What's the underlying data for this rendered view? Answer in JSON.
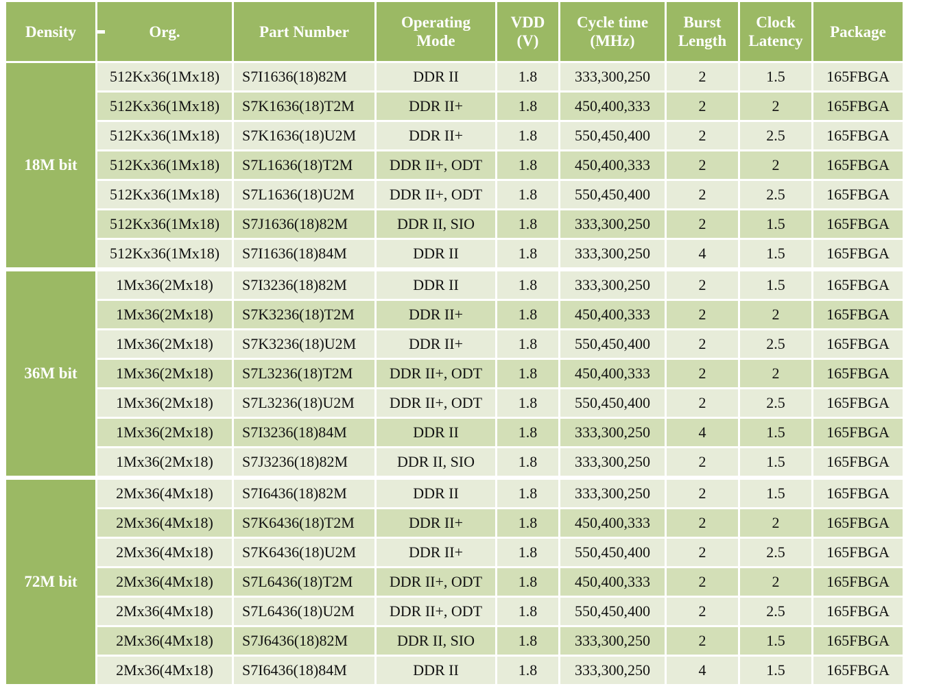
{
  "headers": [
    "Density",
    "Org.",
    "Part Number",
    "Operating\nMode",
    "VDD\n(V)",
    "Cycle time\n(MHz)",
    "Burst\nLength",
    "Clock\nLatency",
    "Package"
  ],
  "groups": [
    {
      "density": "18M bit",
      "rows": [
        [
          "512Kx36(1Mx18)",
          "S7I1636(18)82M",
          "DDR II",
          "1.8",
          "333,300,250",
          "2",
          "1.5",
          "165FBGA"
        ],
        [
          "512Kx36(1Mx18)",
          "S7K1636(18)T2M",
          "DDR II+",
          "1.8",
          "450,400,333",
          "2",
          "2",
          "165FBGA"
        ],
        [
          "512Kx36(1Mx18)",
          "S7K1636(18)U2M",
          "DDR II+",
          "1.8",
          "550,450,400",
          "2",
          "2.5",
          "165FBGA"
        ],
        [
          "512Kx36(1Mx18)",
          "S7L1636(18)T2M",
          "DDR II+, ODT",
          "1.8",
          "450,400,333",
          "2",
          "2",
          "165FBGA"
        ],
        [
          "512Kx36(1Mx18)",
          "S7L1636(18)U2M",
          "DDR II+, ODT",
          "1.8",
          "550,450,400",
          "2",
          "2.5",
          "165FBGA"
        ],
        [
          "512Kx36(1Mx18)",
          "S7J1636(18)82M",
          "DDR II, SIO",
          "1.8",
          "333,300,250",
          "2",
          "1.5",
          "165FBGA"
        ],
        [
          "512Kx36(1Mx18)",
          "S7I1636(18)84M",
          "DDR II",
          "1.8",
          "333,300,250",
          "4",
          "1.5",
          "165FBGA"
        ]
      ]
    },
    {
      "density": "36M bit",
      "rows": [
        [
          "1Mx36(2Mx18)",
          "S7I3236(18)82M",
          "DDR II",
          "1.8",
          "333,300,250",
          "2",
          "1.5",
          "165FBGA"
        ],
        [
          "1Mx36(2Mx18)",
          "S7K3236(18)T2M",
          "DDR II+",
          "1.8",
          "450,400,333",
          "2",
          "2",
          "165FBGA"
        ],
        [
          "1Mx36(2Mx18)",
          "S7K3236(18)U2M",
          "DDR II+",
          "1.8",
          "550,450,400",
          "2",
          "2.5",
          "165FBGA"
        ],
        [
          "1Mx36(2Mx18)",
          "S7L3236(18)T2M",
          "DDR II+, ODT",
          "1.8",
          "450,400,333",
          "2",
          "2",
          "165FBGA"
        ],
        [
          "1Mx36(2Mx18)",
          "S7L3236(18)U2M",
          "DDR II+, ODT",
          "1.8",
          "550,450,400",
          "2",
          "2.5",
          "165FBGA"
        ],
        [
          "1Mx36(2Mx18)",
          "S7I3236(18)84M",
          "DDR II",
          "1.8",
          "333,300,250",
          "4",
          "1.5",
          "165FBGA"
        ],
        [
          "1Mx36(2Mx18)",
          "S7J3236(18)82M",
          "DDR II, SIO",
          "1.8",
          "333,300,250",
          "2",
          "1.5",
          "165FBGA"
        ]
      ]
    },
    {
      "density": "72M bit",
      "rows": [
        [
          "2Mx36(4Mx18)",
          "S7I6436(18)82M",
          "DDR II",
          "1.8",
          "333,300,250",
          "2",
          "1.5",
          "165FBGA"
        ],
        [
          "2Mx36(4Mx18)",
          "S7K6436(18)T2M",
          "DDR II+",
          "1.8",
          "450,400,333",
          "2",
          "2",
          "165FBGA"
        ],
        [
          "2Mx36(4Mx18)",
          "S7K6436(18)U2M",
          "DDR II+",
          "1.8",
          "550,450,400",
          "2",
          "2.5",
          "165FBGA"
        ],
        [
          "2Mx36(4Mx18)",
          "S7L6436(18)T2M",
          "DDR II+, ODT",
          "1.8",
          "450,400,333",
          "2",
          "2",
          "165FBGA"
        ],
        [
          "2Mx36(4Mx18)",
          "S7L6436(18)U2M",
          "DDR II+, ODT",
          "1.8",
          "550,450,400",
          "2",
          "2.5",
          "165FBGA"
        ],
        [
          "2Mx36(4Mx18)",
          "S7J6436(18)82M",
          "DDR II, SIO",
          "1.8",
          "333,300,250",
          "2",
          "1.5",
          "165FBGA"
        ],
        [
          "2Mx36(4Mx18)",
          "S7I6436(18)84M",
          "DDR II",
          "1.8",
          "333,300,250",
          "4",
          "1.5",
          "165FBGA"
        ]
      ]
    }
  ],
  "colors": {
    "header_bg": "#9bb964",
    "row_light": "#e7ecd9",
    "row_dark": "#d3dfb7"
  }
}
